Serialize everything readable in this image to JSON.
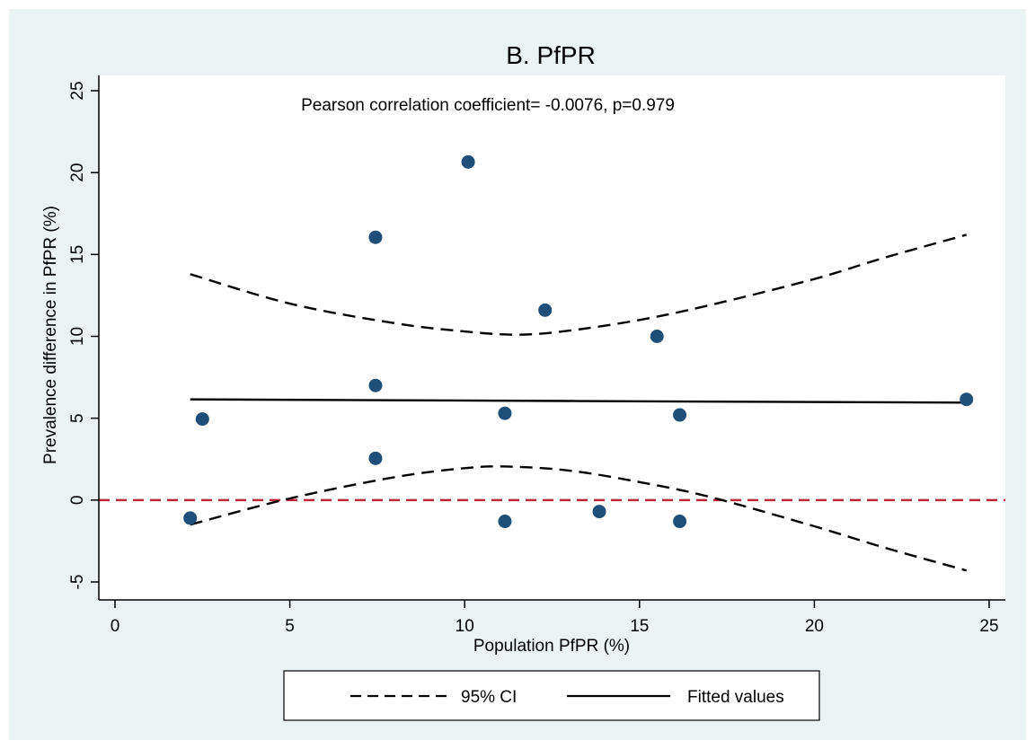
{
  "chart_data": {
    "type": "scatter",
    "title": "B. PfPR",
    "annotation": "Pearson correlation coefficient= -0.0076, p=0.979",
    "xlabel": "Population PfPR (%)",
    "ylabel": "Prevalence difference in PfPR (%)",
    "xlim": [
      0,
      25
    ],
    "ylim": [
      -5,
      25
    ],
    "xticks": [
      "0",
      "5",
      "10",
      "15",
      "20",
      "25"
    ],
    "yticks": [
      "-5",
      "0",
      "5",
      "10",
      "15",
      "20",
      "25"
    ],
    "grid": false,
    "reference_line": {
      "y": 0,
      "color": "#c0263a",
      "style": "dashed"
    },
    "points": [
      {
        "x": 2.15,
        "y": -1.1
      },
      {
        "x": 2.5,
        "y": 4.95
      },
      {
        "x": 7.45,
        "y": 16.05
      },
      {
        "x": 7.45,
        "y": 7.0
      },
      {
        "x": 7.45,
        "y": 2.55
      },
      {
        "x": 10.1,
        "y": 20.65
      },
      {
        "x": 11.15,
        "y": 5.3
      },
      {
        "x": 11.15,
        "y": -1.3
      },
      {
        "x": 12.3,
        "y": 11.6
      },
      {
        "x": 13.85,
        "y": -0.7
      },
      {
        "x": 15.5,
        "y": 10.0
      },
      {
        "x": 16.15,
        "y": 5.2
      },
      {
        "x": 16.15,
        "y": -1.3
      },
      {
        "x": 24.35,
        "y": 6.15
      }
    ],
    "series": [
      {
        "name": "95% CI",
        "style": "dashed",
        "upper": [
          [
            2.15,
            13.8
          ],
          [
            5,
            12.0
          ],
          [
            8,
            10.8
          ],
          [
            10,
            10.3
          ],
          [
            11.5,
            10.1
          ],
          [
            13,
            10.35
          ],
          [
            15,
            11.0
          ],
          [
            17,
            11.9
          ],
          [
            20,
            13.5
          ],
          [
            22,
            14.8
          ],
          [
            24.35,
            16.2
          ]
        ],
        "lower": [
          [
            2.15,
            -1.5
          ],
          [
            5,
            0.1
          ],
          [
            8,
            1.4
          ],
          [
            10,
            1.95
          ],
          [
            11.2,
            2.05
          ],
          [
            13,
            1.8
          ],
          [
            15,
            1.1
          ],
          [
            17,
            0.2
          ],
          [
            20,
            -1.6
          ],
          [
            22,
            -2.9
          ],
          [
            24.35,
            -4.3
          ]
        ]
      },
      {
        "name": "Fitted values",
        "style": "solid",
        "points": [
          [
            2.15,
            6.15
          ],
          [
            24.35,
            5.95
          ]
        ]
      }
    ],
    "legend_placement": "bottom",
    "colors": {
      "marker": "#1f4e79",
      "background": "#eaf2f3",
      "plot": "#ffffff"
    }
  }
}
